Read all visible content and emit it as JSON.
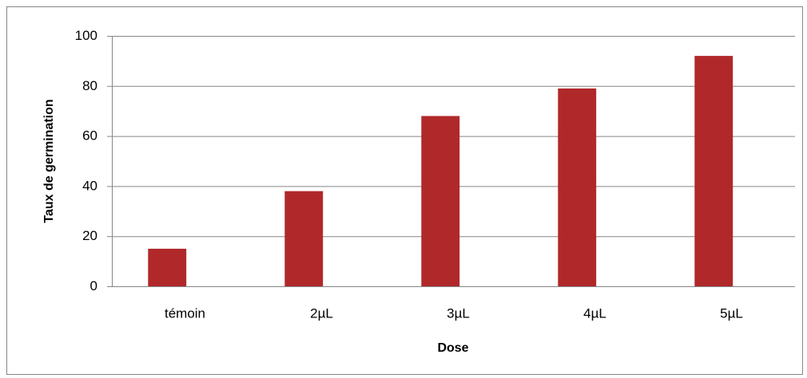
{
  "chart_data": {
    "type": "bar",
    "categories": [
      "témoin",
      "2µL",
      "3µL",
      "4µL",
      "5µL"
    ],
    "values": [
      15,
      38,
      68,
      79,
      92
    ],
    "color": "#b0282a",
    "xlabel": "Dose",
    "ylabel": "Taux de germination",
    "ylim": [
      0,
      100
    ],
    "yticks": [
      0,
      20,
      40,
      60,
      80,
      100
    ],
    "grid": true
  }
}
